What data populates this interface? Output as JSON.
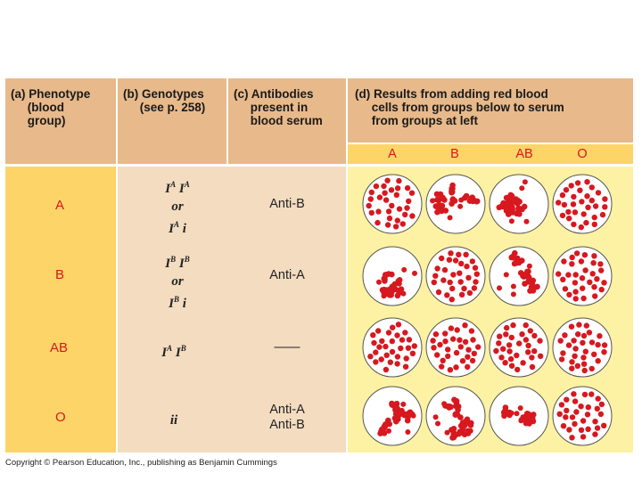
{
  "headers": {
    "phenotype": "(a) Phenotype\n     (blood\n     group)",
    "genotypes": "(b) Genotypes\n     (see p. 258)",
    "antibodies": "(c) Antibodies\n     present in\n     blood serum",
    "results": "(d) Results from adding red blood\n     cells from groups below to serum\n     from groups at left"
  },
  "result_columns": [
    "A",
    "B",
    "AB",
    "O"
  ],
  "rows": [
    {
      "group": "A",
      "genotype": [
        "IA IA",
        "or",
        "IA i"
      ],
      "antibodies": [
        "Anti-B"
      ],
      "results": [
        "dispersed",
        "clumped",
        "clumped",
        "dispersed"
      ]
    },
    {
      "group": "B",
      "genotype": [
        "IB IB",
        "or",
        "IB i"
      ],
      "antibodies": [
        "Anti-A"
      ],
      "results": [
        "clumped",
        "dispersed",
        "clumped",
        "dispersed"
      ]
    },
    {
      "group": "AB",
      "genotype": [
        "IA IB"
      ],
      "antibodies": [
        "——"
      ],
      "results": [
        "dispersed",
        "dispersed",
        "dispersed",
        "dispersed"
      ]
    },
    {
      "group": "O",
      "genotype": [
        "ii"
      ],
      "antibodies": [
        "Anti-A",
        "Anti-B"
      ],
      "results": [
        "clumped",
        "clumped",
        "clumped",
        "dispersed"
      ]
    }
  ],
  "colors": {
    "header": "#e8b98a",
    "phenotype": "#fcd467",
    "genotype": "#f3dcc0",
    "results": "#fdf2a3",
    "cell": "#d7181f"
  },
  "copyright": "Copyright © Pearson Education, Inc., publishing as Benjamin Cummings"
}
